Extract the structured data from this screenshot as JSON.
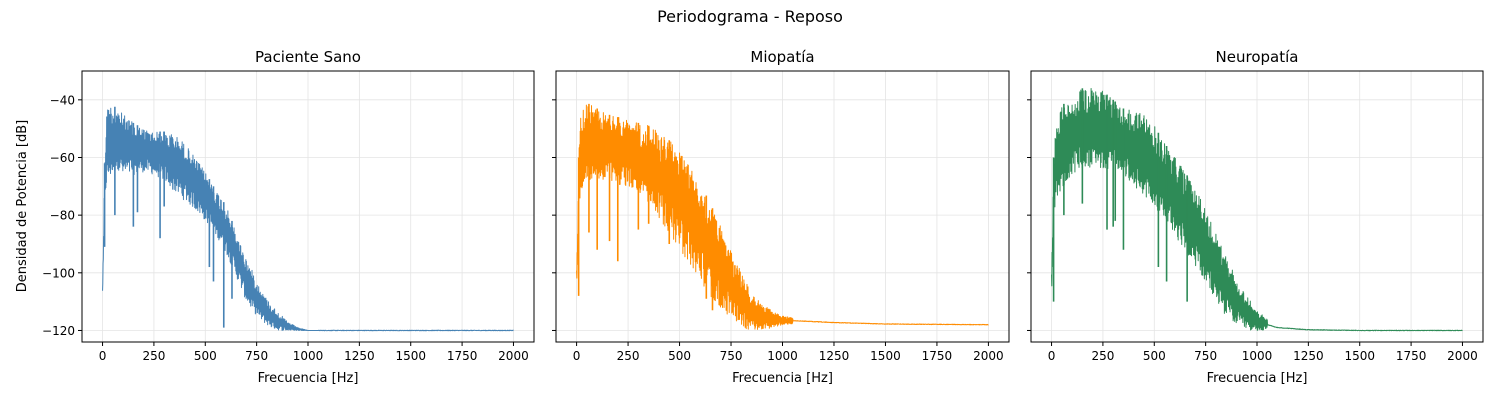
{
  "suptitle": "Periodograma - Reposo",
  "ylabel": "Densidad de Potencia [dB]",
  "chart_data": [
    {
      "type": "line",
      "title": "Paciente Sano",
      "xlabel": "Frecuencia [Hz]",
      "ylabel": "Densidad de Potencia [dB]",
      "color": "#4682b4",
      "xlim": [
        -100,
        2100
      ],
      "ylim": [
        -124,
        -30
      ],
      "xticks": [
        0,
        250,
        500,
        750,
        1000,
        1250,
        1500,
        1750,
        2000
      ],
      "yticks": [
        -40,
        -60,
        -80,
        -100,
        -120
      ],
      "grid": true,
      "envelope": {
        "x": [
          0,
          5,
          10,
          20,
          30,
          50,
          75,
          100,
          150,
          200,
          250,
          300,
          350,
          400,
          450,
          500,
          540,
          580,
          620,
          660,
          700,
          740,
          780,
          820,
          860,
          900,
          950,
          1000,
          1050,
          1100,
          1500,
          2000
        ],
        "upper": [
          -106,
          -85,
          -62,
          -44,
          -41,
          -42,
          -43,
          -45,
          -48,
          -50,
          -51,
          -51,
          -52,
          -55,
          -60,
          -65,
          -70,
          -74,
          -80,
          -88,
          -95,
          -101,
          -107,
          -111,
          -114,
          -117,
          -119,
          -120,
          -120,
          -120,
          -120,
          -120
        ],
        "lower": [
          -107,
          -95,
          -75,
          -70,
          -68,
          -66,
          -64,
          -67,
          -66,
          -65,
          -66,
          -68,
          -72,
          -75,
          -78,
          -82,
          -86,
          -90,
          -96,
          -103,
          -110,
          -114,
          -117,
          -119,
          -120,
          -120,
          -120,
          -120,
          -120,
          -120,
          -120,
          -120
        ]
      },
      "dips": [
        [
          10,
          -91
        ],
        [
          60,
          -80
        ],
        [
          150,
          -84
        ],
        [
          170,
          -79
        ],
        [
          280,
          -88
        ],
        [
          300,
          -77
        ],
        [
          520,
          -98
        ],
        [
          540,
          -103
        ],
        [
          590,
          -119
        ],
        [
          630,
          -109
        ]
      ]
    },
    {
      "type": "line",
      "title": "Miopatía",
      "xlabel": "Frecuencia [Hz]",
      "color": "#ff8c00",
      "xlim": [
        -100,
        2100
      ],
      "ylim": [
        -124,
        -30
      ],
      "xticks": [
        0,
        250,
        500,
        750,
        1000,
        1250,
        1500,
        1750,
        2000
      ],
      "yticks": [
        -40,
        -60,
        -80,
        -100,
        -120
      ],
      "grid": true,
      "envelope": {
        "x": [
          0,
          5,
          10,
          20,
          30,
          50,
          75,
          100,
          150,
          200,
          250,
          300,
          350,
          400,
          450,
          500,
          550,
          600,
          650,
          700,
          750,
          800,
          850,
          900,
          950,
          1000,
          1100,
          1250,
          1500,
          2000
        ],
        "upper": [
          -95,
          -85,
          -60,
          -45,
          -42,
          -41,
          -42,
          -43,
          -45,
          -46,
          -47,
          -48,
          -49,
          -51,
          -54,
          -58,
          -63,
          -69,
          -76,
          -84,
          -92,
          -100,
          -107,
          -111,
          -113,
          -115,
          -116,
          -117,
          -117.5,
          -118
        ],
        "lower": [
          -108,
          -98,
          -78,
          -72,
          -70,
          -68,
          -68,
          -69,
          -68,
          -70,
          -70,
          -73,
          -77,
          -81,
          -86,
          -92,
          -97,
          -103,
          -108,
          -112,
          -116,
          -119,
          -120,
          -120,
          -119,
          -118,
          -117.5,
          -117.5,
          -118,
          -118
        ]
      },
      "dips": [
        [
          10,
          -108
        ],
        [
          60,
          -86
        ],
        [
          100,
          -92
        ],
        [
          160,
          -89
        ],
        [
          200,
          -96
        ],
        [
          300,
          -85
        ],
        [
          350,
          -83
        ],
        [
          450,
          -90
        ],
        [
          630,
          -109
        ],
        [
          660,
          -113
        ]
      ]
    },
    {
      "type": "line",
      "title": "Neuropatía",
      "xlabel": "Frecuencia [Hz]",
      "color": "#2e8b57",
      "xlim": [
        -100,
        2100
      ],
      "ylim": [
        -124,
        -30
      ],
      "xticks": [
        0,
        250,
        500,
        750,
        1000,
        1250,
        1500,
        1750,
        2000
      ],
      "yticks": [
        -40,
        -60,
        -80,
        -100,
        -120
      ],
      "grid": true,
      "envelope": {
        "x": [
          0,
          5,
          10,
          20,
          30,
          50,
          100,
          150,
          200,
          250,
          300,
          350,
          400,
          450,
          500,
          550,
          600,
          650,
          700,
          750,
          800,
          850,
          900,
          950,
          1000,
          1050,
          1100,
          1250,
          1500,
          2000
        ],
        "upper": [
          -100,
          -85,
          -60,
          -50,
          -45,
          -42,
          -39,
          -36,
          -35,
          -37,
          -40,
          -43,
          -44,
          -45,
          -49,
          -55,
          -60,
          -65,
          -71,
          -78,
          -86,
          -94,
          -102,
          -108,
          -113,
          -116,
          -118,
          -119.5,
          -120,
          -120
        ],
        "lower": [
          -109,
          -95,
          -80,
          -78,
          -74,
          -71,
          -66,
          -65,
          -63,
          -64,
          -64,
          -66,
          -70,
          -73,
          -77,
          -82,
          -87,
          -92,
          -98,
          -104,
          -110,
          -115,
          -118,
          -120,
          -120,
          -120,
          -120,
          -120,
          -120,
          -120
        ]
      },
      "dips": [
        [
          10,
          -110
        ],
        [
          60,
          -80
        ],
        [
          150,
          -76
        ],
        [
          270,
          -85
        ],
        [
          300,
          -84
        ],
        [
          310,
          -82
        ],
        [
          350,
          -92
        ],
        [
          520,
          -98
        ],
        [
          560,
          -103
        ],
        [
          660,
          -110
        ]
      ]
    }
  ]
}
